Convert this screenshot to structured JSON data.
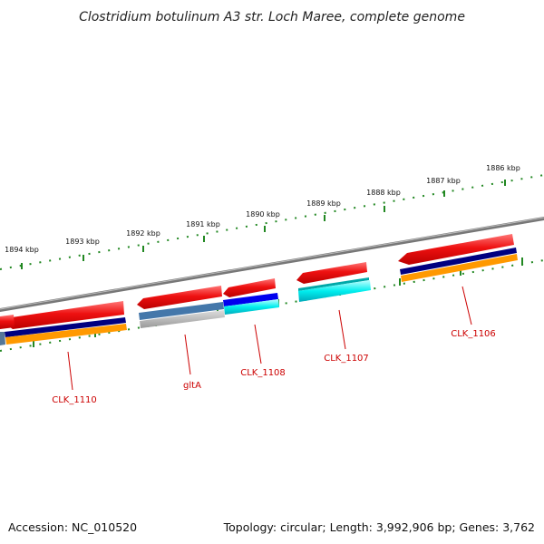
{
  "title": "Clostridium botulinum A3 str. Loch Maree, complete genome",
  "ruler": {
    "labels": [
      "1886 kbp",
      "1887 kbp",
      "1888 kbp",
      "1889 kbp",
      "1890 kbp",
      "1891 kbp",
      "1892 kbp",
      "1893 kbp",
      "1894 kbp"
    ]
  },
  "genes": [
    {
      "name": "CLK_1106"
    },
    {
      "name": "CLK_1107"
    },
    {
      "name": "CLK_1108"
    },
    {
      "name": "gltA"
    },
    {
      "name": "CLK_1110"
    }
  ],
  "colors": {
    "gene_forward": "#ee1111",
    "backbone": "#888888",
    "tick": "#228822",
    "label": "#cc0000",
    "navy": "#000080",
    "orange": "#ff9900",
    "cyan": "#00e5ee",
    "blue": "#0000ee",
    "steel": "#4477aa",
    "grey": "#aaaaaa"
  },
  "footer": {
    "accession": "Accession: NC_010520",
    "summary": "Topology: circular; Length: 3,992,906 bp; Genes: 3,762"
  }
}
